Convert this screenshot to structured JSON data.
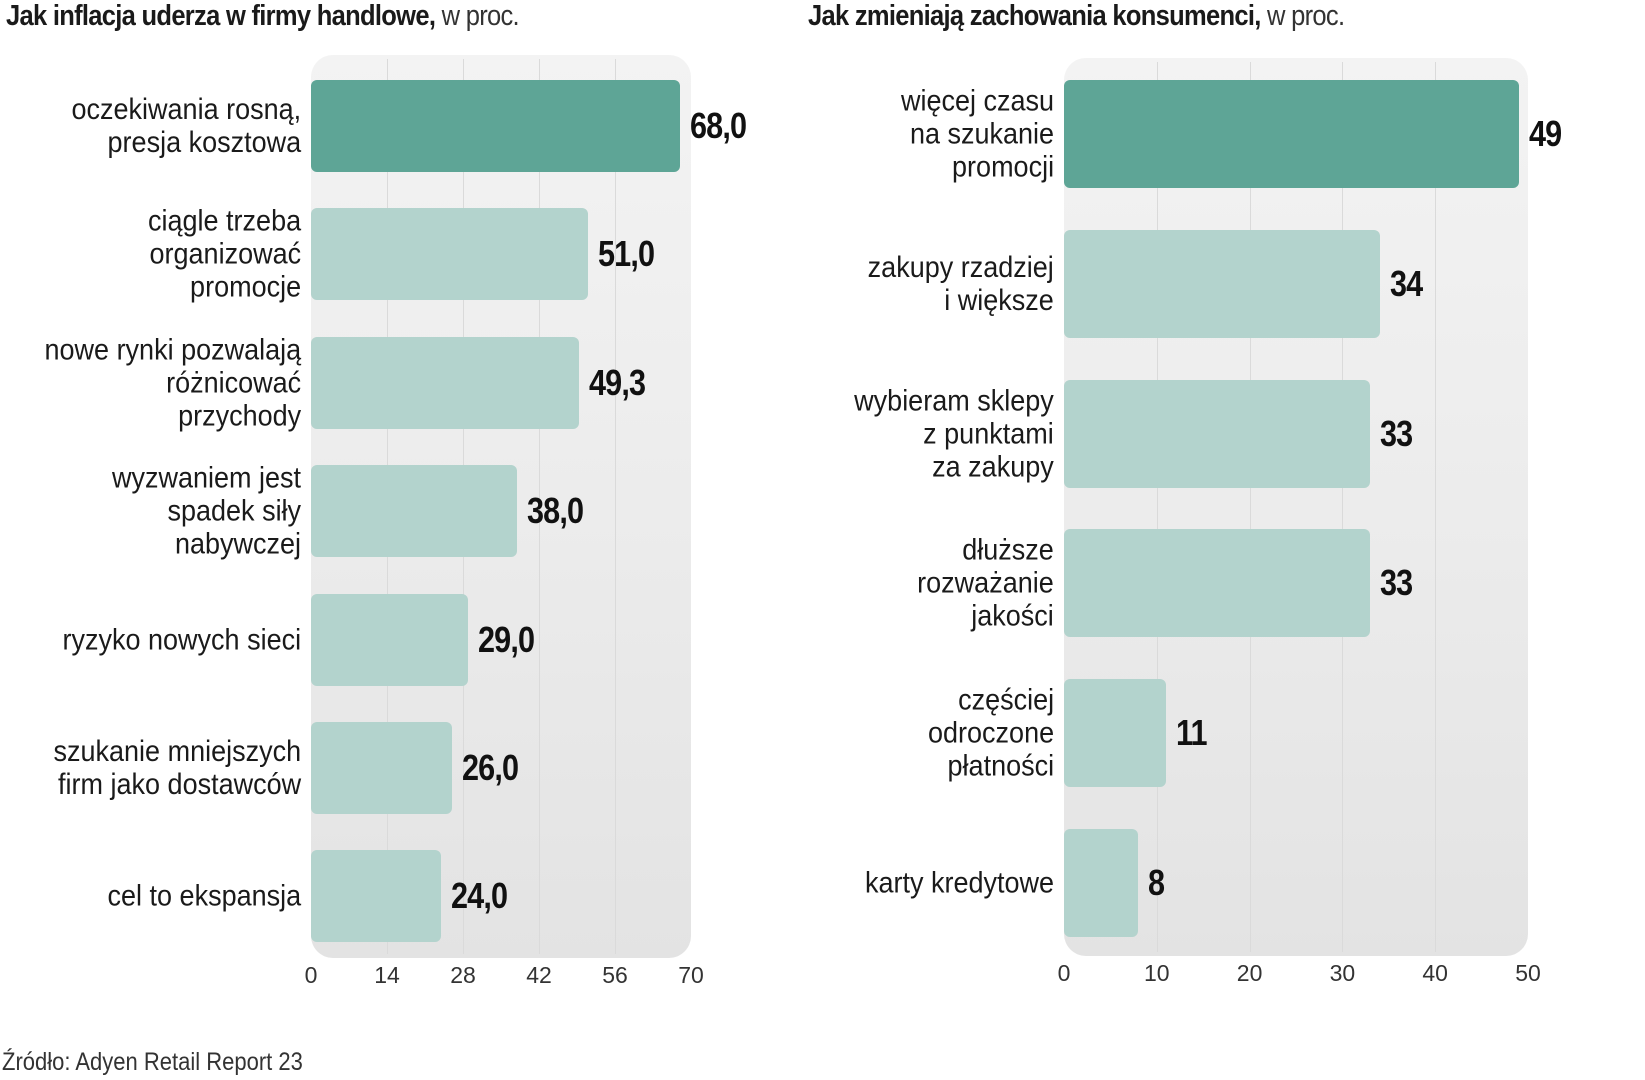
{
  "chart_data": [
    {
      "type": "bar",
      "orientation": "horizontal",
      "title": "Jak inflacja uderza w firmy handlowe,",
      "subtitle": "w proc.",
      "xlabel": "",
      "ylabel": "",
      "xlim": [
        0,
        70
      ],
      "ticks": [
        0,
        14,
        28,
        42,
        56,
        70
      ],
      "tick_labels": [
        "0",
        "14",
        "28",
        "42",
        "56",
        "70"
      ],
      "grid": true,
      "categories": [
        "oczekiwania  rosną,\npresja kosztowa",
        "ciągle trzeba\norganizować\npromocje",
        "nowe rynki pozwalają\nróżnicować\nprzychody",
        "wyzwaniem jest\nspadek siły\nnabywczej",
        "ryzyko nowych sieci",
        "szukanie mniejszych\nfirm jako dostawców",
        "cel to ekspansja"
      ],
      "values": [
        68.0,
        51.0,
        49.3,
        38.0,
        29.0,
        26.0,
        24.0
      ],
      "value_labels": [
        "68,0",
        "51,0",
        "49,3",
        "38,0",
        "29,0",
        "26,0",
        "24,0"
      ],
      "highlight_index": 0
    },
    {
      "type": "bar",
      "orientation": "horizontal",
      "title": "Jak zmieniają zachowania konsumenci,",
      "subtitle": "w proc.",
      "xlabel": "",
      "ylabel": "",
      "xlim": [
        0,
        50
      ],
      "ticks": [
        0,
        10,
        20,
        30,
        40,
        50
      ],
      "tick_labels": [
        "0",
        "10",
        "20",
        "30",
        "40",
        "50"
      ],
      "grid": true,
      "categories": [
        "więcej czasu\nna szukanie\npromocji",
        "zakupy rzadziej\ni większe",
        "wybieram sklepy\nz punktami\nza zakupy",
        "dłuższe\nrozważanie\njakości",
        "częściej\nodroczone\npłatności",
        "karty kredytowe"
      ],
      "values": [
        49,
        34,
        33,
        33,
        11,
        8
      ],
      "value_labels": [
        "49",
        "34",
        "33",
        "33",
        "11",
        "8"
      ],
      "highlight_index": 0
    }
  ],
  "colors": {
    "highlight_bar": "#5ea596",
    "regular_bar": "#b3d3cd"
  },
  "source": "Źródło: Adyen Retail Report 23"
}
